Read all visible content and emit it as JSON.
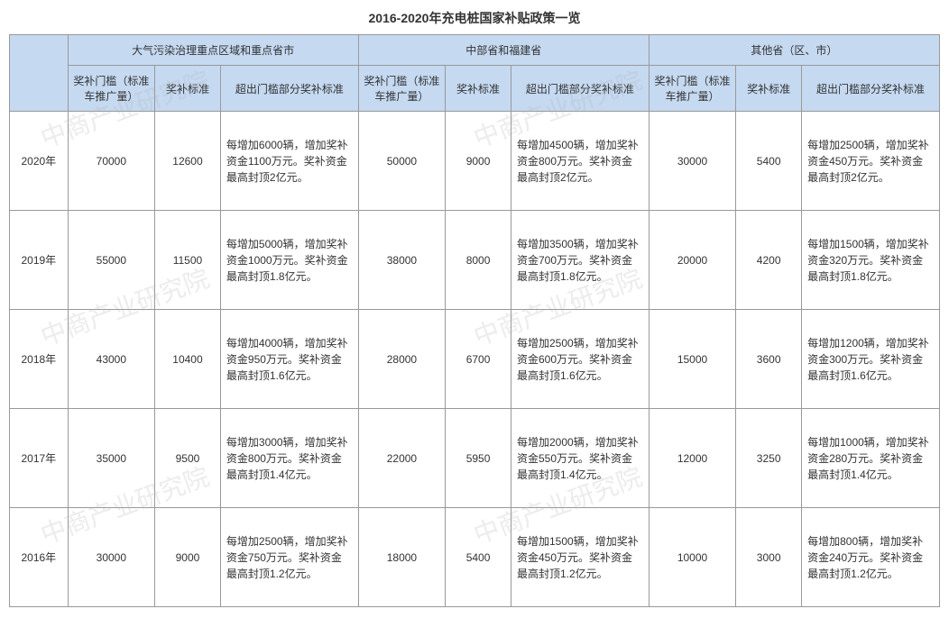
{
  "title": "2016-2020年充电桩国家补贴政策一览",
  "watermark_text": "中商产业研究院",
  "styling": {
    "header_bg": "#c5d9f1",
    "border_color": "#999999",
    "text_color": "#333333",
    "font_size_body": 12,
    "font_size_title": 14,
    "watermark_color": "rgba(180,180,180,0.25)"
  },
  "columns": {
    "year_header": "",
    "groups": [
      {
        "name": "大气污染治理重点区域和重点省市",
        "sub": [
          "奖补门槛（标准车推广量）",
          "奖补标准",
          "超出门槛部分奖补标准"
        ]
      },
      {
        "name": "中部省和福建省",
        "sub": [
          "奖补门槛（标准车推广量）",
          "奖补标准",
          "超出门槛部分奖补标准"
        ]
      },
      {
        "name": "其他省（区、市）",
        "sub": [
          "奖补门槛（标准车推广量）",
          "奖补标准",
          "超出门槛部分奖补标准"
        ]
      }
    ]
  },
  "rows": [
    {
      "year": "2020年",
      "g1": {
        "threshold": "70000",
        "std": "12600",
        "desc": "每增加6000辆，增加奖补资金1100万元。奖补资金最高封顶2亿元。"
      },
      "g2": {
        "threshold": "50000",
        "std": "9000",
        "desc": "每增加4500辆，增加奖补资金800万元。奖补资金最高封顶2亿元。"
      },
      "g3": {
        "threshold": "30000",
        "std": "5400",
        "desc": "每增加2500辆，增加奖补资金450万元。奖补资金最高封顶2亿元。"
      }
    },
    {
      "year": "2019年",
      "g1": {
        "threshold": "55000",
        "std": "11500",
        "desc": "每增加5000辆，增加奖补资金1000万元。奖补资金最高封顶1.8亿元。"
      },
      "g2": {
        "threshold": "38000",
        "std": "8000",
        "desc": "每增加3500辆，增加奖补资金700万元。奖补资金最高封顶1.8亿元。"
      },
      "g3": {
        "threshold": "20000",
        "std": "4200",
        "desc": "每增加1500辆，增加奖补资金320万元。奖补资金最高封顶1.8亿元。"
      }
    },
    {
      "year": "2018年",
      "g1": {
        "threshold": "43000",
        "std": "10400",
        "desc": "每增加4000辆，增加奖补资金950万元。奖补资金最高封顶1.6亿元。"
      },
      "g2": {
        "threshold": "28000",
        "std": "6700",
        "desc": "每增加2500辆，增加奖补资金600万元。奖补资金最高封顶1.6亿元。"
      },
      "g3": {
        "threshold": "15000",
        "std": "3600",
        "desc": "每增加1200辆，增加奖补资金300万元。奖补资金最高封顶1.6亿元。"
      }
    },
    {
      "year": "2017年",
      "g1": {
        "threshold": "35000",
        "std": "9500",
        "desc": "每增加3000辆，增加奖补资金800万元。奖补资金最高封顶1.4亿元。"
      },
      "g2": {
        "threshold": "22000",
        "std": "5950",
        "desc": "每增加2000辆，增加奖补资金550万元。奖补资金最高封顶1.4亿元。"
      },
      "g3": {
        "threshold": "12000",
        "std": "3250",
        "desc": "每增加1000辆，增加奖补资金280万元。奖补资金最高封顶1.4亿元。"
      }
    },
    {
      "year": "2016年",
      "g1": {
        "threshold": "30000",
        "std": "9000",
        "desc": "每增加2500辆，增加奖补资金750万元。奖补资金最高封顶1.2亿元。"
      },
      "g2": {
        "threshold": "18000",
        "std": "5400",
        "desc": "每增加1500辆，增加奖补资金450万元。奖补资金最高封顶1.2亿元。"
      },
      "g3": {
        "threshold": "10000",
        "std": "3000",
        "desc": "每增加800辆，增加奖补资金240万元。奖补资金最高封顶1.2亿元。"
      }
    }
  ]
}
